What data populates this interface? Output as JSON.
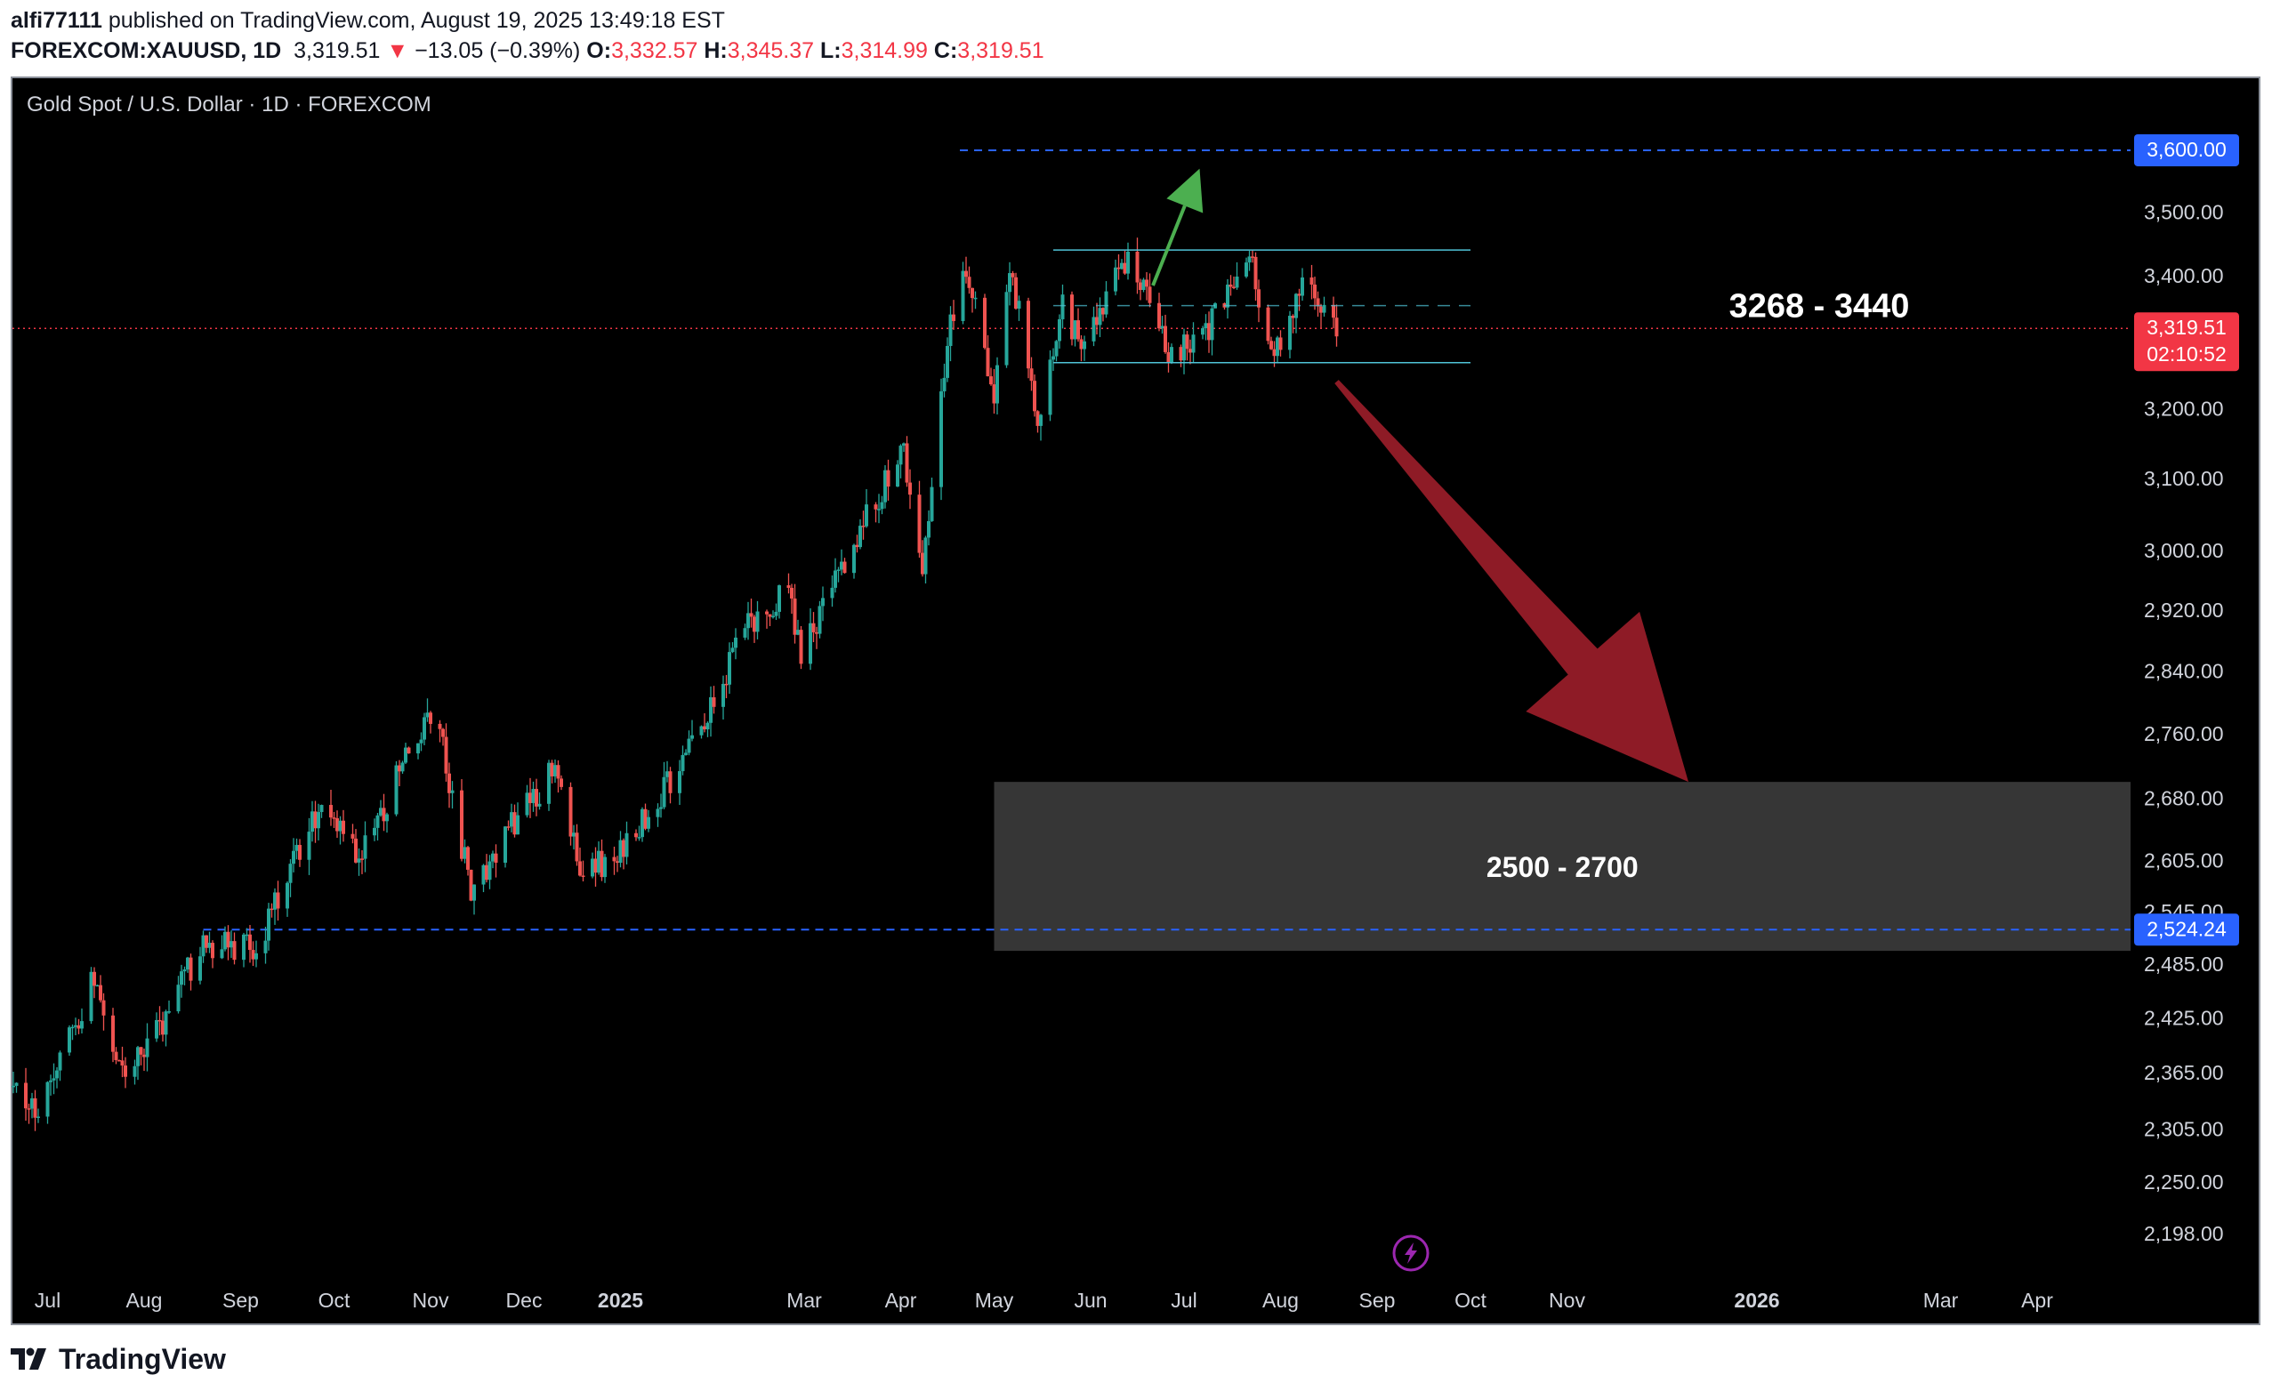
{
  "header": {
    "author": "alfi77111",
    "published": "published on TradingView.com, August 19, 2025 13:49:18 EST",
    "symbol": "FOREXCOM:XAUUSD, 1D",
    "last": "3,319.51",
    "arrow": "▼",
    "change": "−13.05 (−0.39%)",
    "o_label": "O:",
    "o": "3,332.57",
    "h_label": "H:",
    "h": "3,345.37",
    "l_label": "L:",
    "l": "3,314.99",
    "c_label": "C:",
    "c": "3,319.51"
  },
  "chart_title": "Gold Spot / U.S. Dollar · 1D · FOREXCOM",
  "footer": {
    "brand": "TradingView",
    "logo_icon": "tradingview-logo-icon"
  },
  "colors": {
    "up": "#26a69a",
    "down": "#ef5350",
    "background": "#000000",
    "level_line": "#2962ff",
    "range_line": "#4fc3d7",
    "zone": "#363636",
    "down_arrow": "#8e1b26",
    "up_arrow": "#4caf50",
    "last_badge": "#f23645",
    "lightning_icon": "#9c27b0"
  },
  "chart_data": {
    "type": "candlestick",
    "axis": {
      "x_ticks": [
        "Jul",
        "Aug",
        "Sep",
        "Oct",
        "Nov",
        "Dec",
        "2025",
        "Mar",
        "Apr",
        "May",
        "Jun",
        "Jul",
        "Aug",
        "Sep",
        "Oct",
        "Nov",
        "2026",
        "Mar",
        "Apr"
      ],
      "y_ticks": [
        "3,500.00",
        "3,400.00",
        "3,200.00",
        "3,100.00",
        "3,000.00",
        "2,920.00",
        "2,840.00",
        "2,760.00",
        "2,680.00",
        "2,605.00",
        "2,545.00",
        "2,485.00",
        "2,425.00",
        "2,365.00",
        "2,305.00",
        "2,250.00",
        "2,198.00"
      ],
      "y_scale": "log",
      "ylim": [
        2160,
        3720
      ]
    },
    "last_price": {
      "value": 3319.51,
      "label": "3,319.51",
      "countdown": "02:10:52"
    },
    "levels": [
      {
        "value": 3600,
        "label": "3,600.00",
        "from": "2025-04-20"
      },
      {
        "value": 2524.24,
        "label": "2,524.24",
        "from": "2024-08-20"
      }
    ],
    "range": {
      "low": 3268,
      "high": 3440,
      "mid": 3354,
      "from": "2025-05-20",
      "to": "2025-10-01",
      "label": "3268 - 3440"
    },
    "target_zone": {
      "low": 2500,
      "high": 2700,
      "from": "2025-05-01",
      "label": "2500 - 2700"
    },
    "arrows": [
      {
        "direction": "up",
        "from_date": "2025-06-21",
        "from_value": 3385,
        "to_date": "2025-07-06",
        "to_value": 3570
      },
      {
        "direction": "down",
        "from_date": "2025-08-19",
        "from_value": 3240,
        "to_date": "2025-12-10",
        "to_value": 2700
      }
    ],
    "anchors": [
      {
        "date": "2024-06-20",
        "value": 2350
      },
      {
        "date": "2024-06-27",
        "value": 2320
      },
      {
        "date": "2024-07-05",
        "value": 2380
      },
      {
        "date": "2024-07-16",
        "value": 2470
      },
      {
        "date": "2024-07-25",
        "value": 2370
      },
      {
        "date": "2024-08-05",
        "value": 2410
      },
      {
        "date": "2024-08-20",
        "value": 2510
      },
      {
        "date": "2024-09-06",
        "value": 2500
      },
      {
        "date": "2024-09-20",
        "value": 2620
      },
      {
        "date": "2024-09-26",
        "value": 2670
      },
      {
        "date": "2024-10-10",
        "value": 2610
      },
      {
        "date": "2024-10-30",
        "value": 2780
      },
      {
        "date": "2024-11-05",
        "value": 2740
      },
      {
        "date": "2024-11-14",
        "value": 2565
      },
      {
        "date": "2024-11-25",
        "value": 2640
      },
      {
        "date": "2024-12-11",
        "value": 2715
      },
      {
        "date": "2024-12-19",
        "value": 2590
      },
      {
        "date": "2024-12-30",
        "value": 2610
      },
      {
        "date": "2025-01-15",
        "value": 2690
      },
      {
        "date": "2025-01-31",
        "value": 2800
      },
      {
        "date": "2025-02-11",
        "value": 2900
      },
      {
        "date": "2025-02-24",
        "value": 2950
      },
      {
        "date": "2025-02-28",
        "value": 2860
      },
      {
        "date": "2025-03-20",
        "value": 3040
      },
      {
        "date": "2025-04-02",
        "value": 3140
      },
      {
        "date": "2025-04-08",
        "value": 2980
      },
      {
        "date": "2025-04-17",
        "value": 3330
      },
      {
        "date": "2025-04-22",
        "value": 3400
      },
      {
        "date": "2025-05-01",
        "value": 3230
      },
      {
        "date": "2025-05-06",
        "value": 3420
      },
      {
        "date": "2025-05-15",
        "value": 3180
      },
      {
        "date": "2025-05-23",
        "value": 3360
      },
      {
        "date": "2025-05-29",
        "value": 3290
      },
      {
        "date": "2025-06-13",
        "value": 3430
      },
      {
        "date": "2025-06-27",
        "value": 3280
      },
      {
        "date": "2025-07-08",
        "value": 3310
      },
      {
        "date": "2025-07-22",
        "value": 3430
      },
      {
        "date": "2025-07-30",
        "value": 3275
      },
      {
        "date": "2025-08-08",
        "value": 3400
      },
      {
        "date": "2025-08-19",
        "value": 3319.51
      }
    ]
  }
}
